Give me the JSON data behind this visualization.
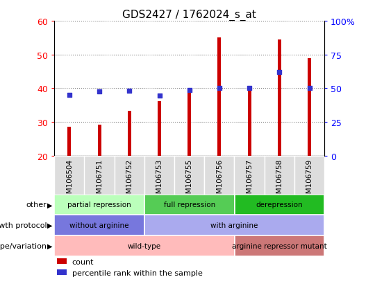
{
  "title": "GDS2427 / 1762024_s_at",
  "samples": [
    "GSM106504",
    "GSM106751",
    "GSM106752",
    "GSM106753",
    "GSM106755",
    "GSM106756",
    "GSM106757",
    "GSM106758",
    "GSM106759"
  ],
  "counts": [
    28.5,
    29.2,
    33.2,
    36.2,
    39.0,
    55.0,
    40.0,
    54.5,
    49.0
  ],
  "percentile_ranks_pct": [
    45.0,
    47.5,
    48.0,
    44.5,
    48.5,
    50.0,
    50.0,
    62.0,
    50.0
  ],
  "ylim": [
    20,
    60
  ],
  "y2lim": [
    0,
    100
  ],
  "yticks": [
    20,
    30,
    40,
    50,
    60
  ],
  "y2ticks": [
    0,
    25,
    50,
    75,
    100
  ],
  "bar_color": "#cc0000",
  "dot_color": "#3333cc",
  "bar_bottom": 20,
  "bar_width": 0.12,
  "annotation_rows": [
    {
      "label": "other",
      "segments": [
        {
          "text": "partial repression",
          "start": 0,
          "end": 3,
          "color": "#bbffbb"
        },
        {
          "text": "full repression",
          "start": 3,
          "end": 6,
          "color": "#55cc55"
        },
        {
          "text": "derepression",
          "start": 6,
          "end": 9,
          "color": "#22bb22"
        }
      ]
    },
    {
      "label": "growth protocol",
      "segments": [
        {
          "text": "without arginine",
          "start": 0,
          "end": 3,
          "color": "#7777dd"
        },
        {
          "text": "with arginine",
          "start": 3,
          "end": 9,
          "color": "#aaaaee"
        }
      ]
    },
    {
      "label": "genotype/variation",
      "segments": [
        {
          "text": "wild-type",
          "start": 0,
          "end": 6,
          "color": "#ffbbbb"
        },
        {
          "text": "arginine repressor mutant",
          "start": 6,
          "end": 9,
          "color": "#cc7777"
        }
      ]
    }
  ],
  "legend_items": [
    {
      "label": "count",
      "color": "#cc0000"
    },
    {
      "label": "percentile rank within the sample",
      "color": "#3333cc"
    }
  ],
  "xtick_bg": "#dddddd",
  "grid_color": "#000000",
  "grid_alpha": 0.5,
  "grid_linestyle": "dotted"
}
